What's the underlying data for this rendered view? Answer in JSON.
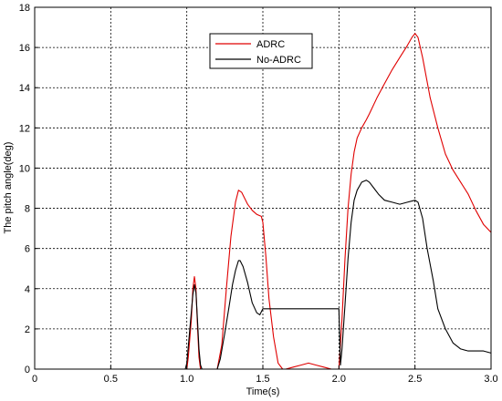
{
  "chart_data": {
    "type": "line",
    "title": "",
    "xlabel": "Time(s)",
    "ylabel": "The pitch angle(deg)",
    "xlim": [
      0,
      3.0
    ],
    "ylim": [
      0,
      18
    ],
    "x_ticks": [
      "0",
      "0.5",
      "1.0",
      "1.5",
      "2.0",
      "2.5",
      "3.0"
    ],
    "y_ticks": [
      "0",
      "2",
      "4",
      "6",
      "8",
      "10",
      "12",
      "14",
      "16",
      "18"
    ],
    "grid": true,
    "legend_position": "top-center",
    "series": [
      {
        "name": "ADRC",
        "color": "#e00000",
        "x": [
          0,
          1.0,
          1.01,
          1.03,
          1.04,
          1.05,
          1.06,
          1.07,
          1.08,
          1.09,
          1.1,
          1.15,
          1.2,
          1.23,
          1.26,
          1.29,
          1.32,
          1.34,
          1.36,
          1.38,
          1.4,
          1.43,
          1.46,
          1.49,
          1.5,
          1.52,
          1.54,
          1.57,
          1.6,
          1.63,
          1.65,
          1.7,
          1.75,
          1.8,
          1.85,
          1.9,
          1.95,
          2.0,
          2.02,
          2.04,
          2.06,
          2.08,
          2.1,
          2.12,
          2.15,
          2.18,
          2.2,
          2.25,
          2.3,
          2.35,
          2.4,
          2.45,
          2.48,
          2.5,
          2.52,
          2.55,
          2.6,
          2.65,
          2.7,
          2.75,
          2.8,
          2.85,
          2.9,
          2.95,
          3.0
        ],
        "y": [
          0,
          0,
          0.6,
          2.5,
          4.0,
          4.6,
          4.0,
          2.2,
          0.6,
          0.0,
          0,
          0,
          0,
          1.2,
          4.0,
          6.6,
          8.3,
          8.9,
          8.8,
          8.5,
          8.2,
          7.9,
          7.7,
          7.6,
          7.3,
          5.6,
          3.5,
          1.6,
          0.3,
          0,
          0,
          0.1,
          0.2,
          0.3,
          0.2,
          0.1,
          0,
          0,
          2.5,
          5.5,
          8.0,
          9.7,
          10.8,
          11.5,
          12.0,
          12.4,
          12.7,
          13.5,
          14.2,
          14.9,
          15.5,
          16.1,
          16.5,
          16.7,
          16.5,
          15.5,
          13.5,
          12.0,
          10.7,
          9.9,
          9.3,
          8.7,
          7.9,
          7.2,
          6.8
        ]
      },
      {
        "name": "No-ADRC",
        "color": "#000000",
        "x": [
          0,
          0.99,
          1.0,
          1.02,
          1.04,
          1.05,
          1.06,
          1.07,
          1.08,
          1.09,
          1.1,
          1.15,
          1.2,
          1.22,
          1.25,
          1.28,
          1.3,
          1.32,
          1.34,
          1.35,
          1.37,
          1.4,
          1.43,
          1.46,
          1.48,
          1.5,
          1.55,
          1.6,
          1.7,
          1.8,
          1.9,
          2.0,
          2.01,
          2.02,
          2.04,
          2.06,
          2.08,
          2.1,
          2.12,
          2.15,
          2.18,
          2.2,
          2.23,
          2.26,
          2.3,
          2.35,
          2.4,
          2.45,
          2.5,
          2.52,
          2.55,
          2.58,
          2.62,
          2.65,
          2.7,
          2.75,
          2.8,
          2.85,
          2.9,
          2.95,
          3.0
        ],
        "y": [
          0,
          0,
          0.3,
          2.0,
          3.7,
          4.2,
          3.8,
          2.5,
          1.0,
          0.2,
          0,
          0,
          0,
          0.5,
          1.8,
          3.2,
          4.2,
          4.9,
          5.4,
          5.4,
          5.1,
          4.3,
          3.3,
          2.8,
          2.7,
          3.0,
          3.0,
          3.0,
          3.0,
          3.0,
          3.0,
          3.0,
          0.2,
          1.0,
          3.2,
          5.5,
          7.3,
          8.4,
          8.9,
          9.3,
          9.4,
          9.3,
          9.0,
          8.7,
          8.4,
          8.3,
          8.2,
          8.3,
          8.4,
          8.3,
          7.5,
          6.0,
          4.4,
          3.0,
          2.0,
          1.3,
          1.0,
          0.9,
          0.9,
          0.9,
          0.8
        ]
      }
    ]
  }
}
